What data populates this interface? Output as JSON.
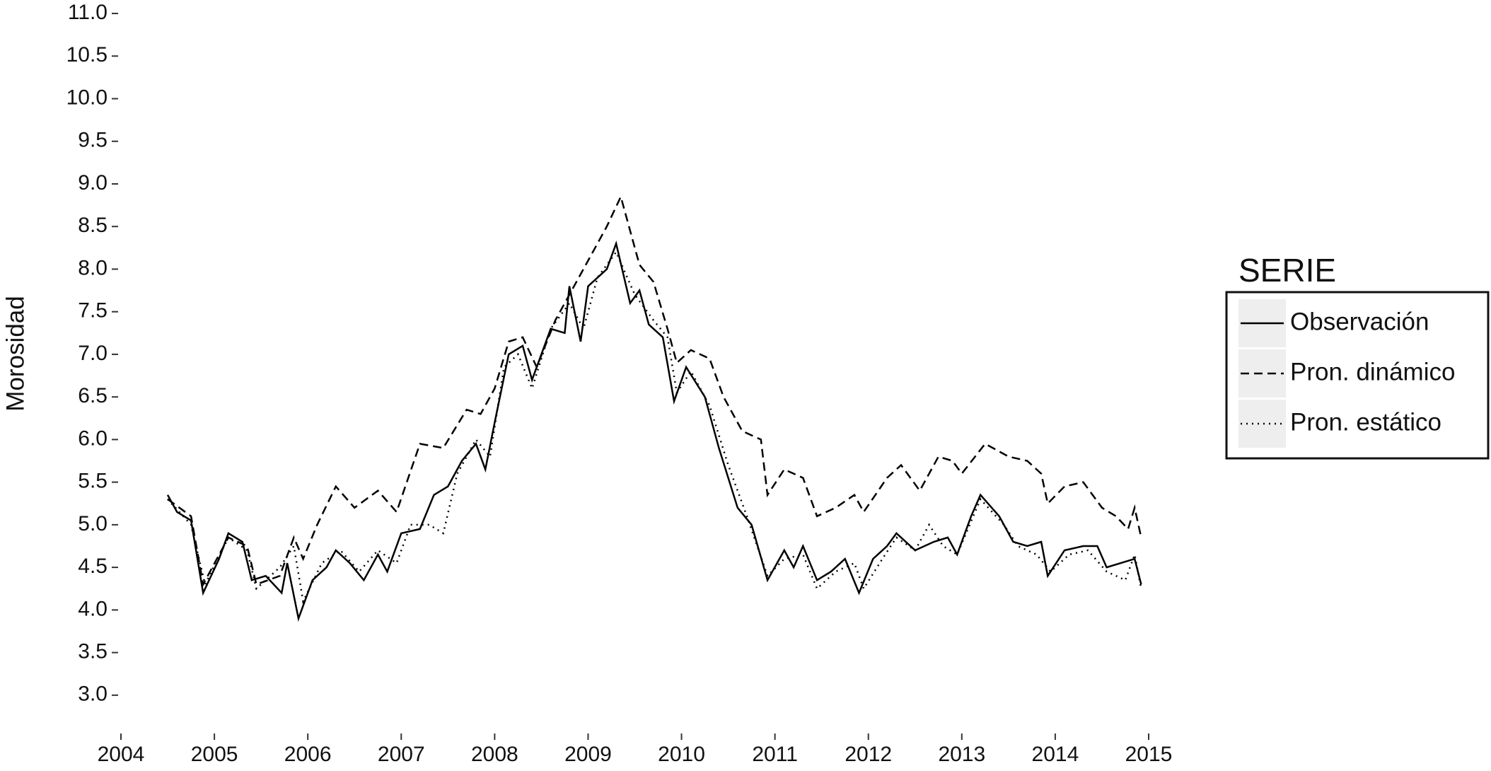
{
  "chart_data": {
    "type": "line",
    "y_label": "Morosidad",
    "legend_title": "SERIE",
    "legend_position": "right",
    "xlim": [
      2004,
      2015
    ],
    "xticks": [
      2004,
      2005,
      2006,
      2007,
      2008,
      2009,
      2010,
      2011,
      2012,
      2013,
      2014,
      2015
    ],
    "ylim": [
      2.6,
      11.1
    ],
    "yticks": [
      {
        "value": 3,
        "label": "3.0"
      },
      3.5,
      {
        "value": 4,
        "label": "4.0"
      },
      4.5,
      {
        "value": 5,
        "label": "5.0"
      },
      5.5,
      {
        "value": 6,
        "label": "6.0"
      },
      6.5,
      {
        "value": 7,
        "label": "7.0"
      },
      7.5,
      {
        "value": 8,
        "label": "8.0"
      },
      8.5,
      {
        "value": 9,
        "label": "9.0"
      },
      9.5,
      {
        "value": 10,
        "label": "10.0"
      },
      10.5,
      {
        "value": 11,
        "label": "11.0"
      }
    ],
    "series": [
      {
        "name": "Observación",
        "color": "#000000",
        "dash": "solid",
        "x": [
          2004.5,
          2004.6,
          2004.75,
          2004.88,
          2005.05,
          2005.15,
          2005.3,
          2005.4,
          2005.55,
          2005.72,
          2005.78,
          2005.9,
          2006.05,
          2006.2,
          2006.3,
          2006.45,
          2006.6,
          2006.75,
          2006.85,
          2007.0,
          2007.2,
          2007.35,
          2007.5,
          2007.65,
          2007.8,
          2007.9,
          2008.0,
          2008.15,
          2008.3,
          2008.4,
          2008.6,
          2008.75,
          2008.8,
          2008.92,
          2009.0,
          2009.2,
          2009.3,
          2009.45,
          2009.55,
          2009.65,
          2009.8,
          2009.92,
          2010.05,
          2010.25,
          2010.4,
          2010.6,
          2010.75,
          2010.92,
          2011.1,
          2011.2,
          2011.3,
          2011.45,
          2011.6,
          2011.75,
          2011.9,
          2012.05,
          2012.2,
          2012.3,
          2012.5,
          2012.7,
          2012.85,
          2012.95,
          2013.1,
          2013.2,
          2013.4,
          2013.55,
          2013.7,
          2013.85,
          2013.92,
          2014.1,
          2014.3,
          2014.45,
          2014.55,
          2014.7,
          2014.85,
          2014.92
        ],
        "values": [
          5.35,
          5.15,
          5.05,
          4.2,
          4.6,
          4.9,
          4.8,
          4.35,
          4.4,
          4.2,
          4.55,
          3.9,
          4.35,
          4.5,
          4.7,
          4.55,
          4.35,
          4.65,
          4.45,
          4.9,
          4.95,
          5.35,
          5.45,
          5.75,
          5.95,
          5.65,
          6.2,
          7.0,
          7.1,
          6.7,
          7.3,
          7.25,
          7.8,
          7.15,
          7.8,
          8.0,
          8.3,
          7.6,
          7.75,
          7.35,
          7.2,
          6.45,
          6.85,
          6.5,
          5.9,
          5.2,
          5.0,
          4.35,
          4.7,
          4.5,
          4.75,
          4.35,
          4.45,
          4.6,
          4.2,
          4.6,
          4.75,
          4.9,
          4.7,
          4.8,
          4.85,
          4.65,
          5.1,
          5.35,
          5.1,
          4.8,
          4.75,
          4.8,
          4.4,
          4.7,
          4.75,
          4.75,
          4.5,
          4.55,
          4.6,
          4.3
        ]
      },
      {
        "name": "Pron. dinámico",
        "color": "#000000",
        "dash": "dashed",
        "x": [
          2004.5,
          2004.75,
          2004.88,
          2005.15,
          2005.35,
          2005.45,
          2005.7,
          2005.85,
          2005.95,
          2006.1,
          2006.3,
          2006.5,
          2006.75,
          2006.95,
          2007.2,
          2007.45,
          2007.7,
          2007.85,
          2008.0,
          2008.15,
          2008.3,
          2008.45,
          2008.65,
          2008.8,
          2009.0,
          2009.2,
          2009.35,
          2009.55,
          2009.7,
          2009.85,
          2009.95,
          2010.1,
          2010.3,
          2010.45,
          2010.65,
          2010.85,
          2010.92,
          2011.1,
          2011.3,
          2011.45,
          2011.65,
          2011.85,
          2011.95,
          2012.2,
          2012.35,
          2012.55,
          2012.75,
          2012.9,
          2013.0,
          2013.25,
          2013.5,
          2013.7,
          2013.85,
          2013.92,
          2014.1,
          2014.3,
          2014.5,
          2014.65,
          2014.78,
          2014.85,
          2014.92
        ],
        "values": [
          5.3,
          5.1,
          4.3,
          4.85,
          4.75,
          4.3,
          4.4,
          4.85,
          4.6,
          5.0,
          5.45,
          5.2,
          5.4,
          5.15,
          5.95,
          5.9,
          6.35,
          6.3,
          6.6,
          7.15,
          7.2,
          6.85,
          7.4,
          7.7,
          8.1,
          8.5,
          8.85,
          8.05,
          7.85,
          7.3,
          6.9,
          7.05,
          6.95,
          6.5,
          6.1,
          6.0,
          5.35,
          5.65,
          5.55,
          5.1,
          5.2,
          5.35,
          5.15,
          5.55,
          5.7,
          5.4,
          5.8,
          5.75,
          5.6,
          5.95,
          5.8,
          5.75,
          5.6,
          5.25,
          5.45,
          5.5,
          5.2,
          5.1,
          4.95,
          5.2,
          4.85
        ]
      },
      {
        "name": "Pron. estático",
        "color": "#000000",
        "dash": "dotted",
        "x": [
          2004.5,
          2004.75,
          2004.9,
          2005.15,
          2005.35,
          2005.45,
          2005.7,
          2005.85,
          2005.95,
          2006.15,
          2006.35,
          2006.55,
          2006.75,
          2006.95,
          2007.1,
          2007.3,
          2007.45,
          2007.6,
          2007.8,
          2007.95,
          2008.1,
          2008.25,
          2008.4,
          2008.6,
          2008.8,
          2008.95,
          2009.1,
          2009.3,
          2009.5,
          2009.7,
          2009.85,
          2009.95,
          2010.1,
          2010.3,
          2010.5,
          2010.7,
          2010.92,
          2011.1,
          2011.3,
          2011.45,
          2011.65,
          2011.85,
          2011.95,
          2012.15,
          2012.3,
          2012.5,
          2012.65,
          2012.8,
          2012.95,
          2013.2,
          2013.45,
          2013.6,
          2013.8,
          2013.95,
          2014.15,
          2014.35,
          2014.55,
          2014.75,
          2014.85,
          2014.92
        ],
        "values": [
          5.3,
          5.0,
          4.3,
          4.85,
          4.7,
          4.25,
          4.5,
          4.75,
          4.1,
          4.55,
          4.7,
          4.45,
          4.7,
          4.55,
          5.0,
          5.0,
          4.9,
          5.6,
          6.0,
          5.8,
          6.85,
          7.0,
          6.6,
          7.3,
          7.6,
          7.3,
          7.9,
          8.2,
          7.7,
          7.4,
          7.2,
          6.55,
          6.8,
          6.4,
          5.7,
          5.1,
          4.4,
          4.6,
          4.65,
          4.25,
          4.45,
          4.55,
          4.25,
          4.6,
          4.85,
          4.7,
          5.0,
          4.75,
          4.65,
          5.3,
          5.0,
          4.75,
          4.65,
          4.45,
          4.65,
          4.7,
          4.45,
          4.35,
          4.65,
          4.25
        ]
      }
    ]
  }
}
